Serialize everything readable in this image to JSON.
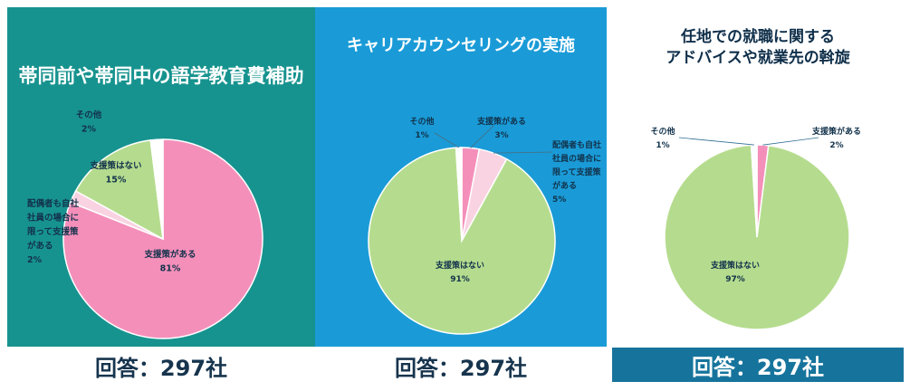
{
  "colors": {
    "pink": "#f48fba",
    "light_pink": "#f9d3e2",
    "green": "#b5dc8e",
    "white": "#ffffff",
    "teal_bg": "#17938f",
    "blue_bg": "#1a9bd7",
    "footer_navy": "#16749c"
  },
  "chart_data": [
    {
      "type": "pie",
      "title": "帯同前や帯同中の語学教育費補助",
      "slices": [
        {
          "label": "支援策がある",
          "value": 81,
          "pct": "81%",
          "color": "#f48fba"
        },
        {
          "label": "配偶者も自社社員の場合に限って支援策がある",
          "value": 2,
          "pct": "2%",
          "color": "#f9d3e2"
        },
        {
          "label": "支援策はない",
          "value": 15,
          "pct": "15%",
          "color": "#b5dc8e"
        },
        {
          "label": "その他",
          "value": 2,
          "pct": "2%",
          "color": "#ffffff"
        }
      ],
      "respondents": "回答：297社"
    },
    {
      "type": "pie",
      "title": "キャリアカウンセリングの実施",
      "slices": [
        {
          "label": "支援策がある",
          "value": 3,
          "pct": "3%",
          "color": "#f48fba"
        },
        {
          "label": "配偶者も自社社員の場合に限って支援策がある",
          "value": 5,
          "pct": "5%",
          "color": "#f9d3e2"
        },
        {
          "label": "支援策はない",
          "value": 91,
          "pct": "91%",
          "color": "#b5dc8e"
        },
        {
          "label": "その他",
          "value": 1,
          "pct": "1%",
          "color": "#ffffff"
        }
      ],
      "respondents": "回答：297社"
    },
    {
      "type": "pie",
      "title": "任地での就職に関する アドバイスや就業先の斡旋",
      "title_lines": [
        "任地での就職に関する",
        "アドバイスや就業先の斡旋"
      ],
      "slices": [
        {
          "label": "支援策がある",
          "value": 2,
          "pct": "2%",
          "color": "#f48fba"
        },
        {
          "label": "支援策はない",
          "value": 97,
          "pct": "97%",
          "color": "#b5dc8e"
        },
        {
          "label": "その他",
          "value": 1,
          "pct": "1%",
          "color": "#ffffff"
        }
      ],
      "respondents": "回答：297社"
    }
  ]
}
